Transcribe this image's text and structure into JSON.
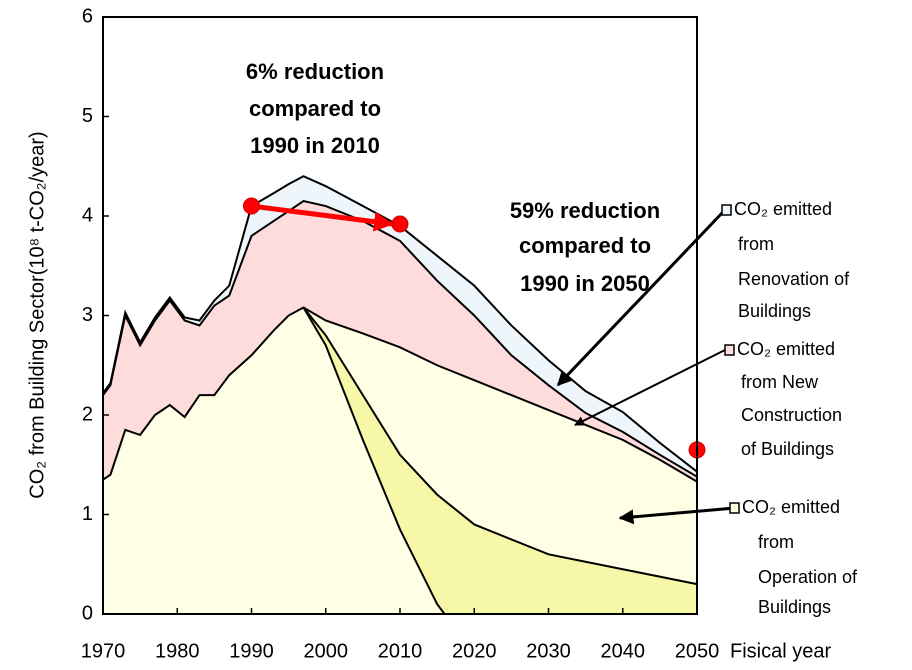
{
  "chart_data": {
    "type": "stacked_area",
    "y_label": "CO₂ from Building Sector(10⁸ t-CO₂/year)",
    "x_label": "Fisical year",
    "x": [
      1970,
      1971,
      1973,
      1975,
      1977,
      1979,
      1981,
      1983,
      1985,
      1987,
      1990,
      1993,
      1995,
      1997,
      2000,
      2005,
      2010,
      2015,
      2020,
      2025,
      2030,
      2035,
      2040,
      2045,
      2050
    ],
    "series": [
      {
        "name": [
          "CO₂ emitted",
          "from",
          "Operation of",
          "Buildings"
        ],
        "color": "#ffffe6",
        "values": [
          1.35,
          1.4,
          1.85,
          1.8,
          2.0,
          2.1,
          1.98,
          2.2,
          2.2,
          2.4,
          2.6,
          2.85,
          3.0,
          3.08,
          2.95,
          2.82,
          2.68,
          2.5,
          2.35,
          2.2,
          2.05,
          1.9,
          1.75,
          1.55,
          1.33
        ]
      },
      {
        "name": [
          "CO₂ emitted",
          "from New",
          "Construction",
          "of Buildings"
        ],
        "color": "#ffdcdc",
        "values": [
          0.85,
          0.9,
          1.15,
          0.9,
          0.95,
          1.05,
          0.97,
          0.7,
          0.9,
          0.8,
          1.2,
          1.1,
          1.05,
          1.07,
          1.15,
          1.13,
          1.07,
          0.85,
          0.65,
          0.4,
          0.25,
          0.12,
          0.08,
          0.05,
          0.05
        ]
      },
      {
        "name": [
          "CO₂ emitted",
          "from",
          "Renovation of",
          "Buildings"
        ],
        "color": "#eef6fc",
        "values": [
          0.02,
          0.02,
          0.03,
          0.03,
          0.03,
          0.03,
          0.03,
          0.05,
          0.05,
          0.1,
          0.3,
          0.28,
          0.27,
          0.25,
          0.2,
          0.15,
          0.15,
          0.25,
          0.3,
          0.3,
          0.25,
          0.22,
          0.2,
          0.12,
          0.05
        ]
      }
    ],
    "lines": [
      {
        "x": [
          1997,
          2000,
          2005,
          2010,
          2015,
          2016,
          2020,
          2030,
          2040,
          2050
        ],
        "values": [
          3.08,
          2.7,
          1.75,
          0.85,
          0.1,
          0,
          0,
          0,
          0,
          0
        ]
      },
      {
        "x": [
          1997,
          2000,
          2005,
          2010,
          2015,
          2020,
          2030,
          2040,
          2050
        ],
        "values": [
          3.08,
          2.8,
          2.2,
          1.6,
          1.2,
          0.9,
          0.6,
          0.45,
          0.3
        ]
      }
    ],
    "band_color": "#f7f7a8",
    "points": {
      "x": [
        1990,
        2010,
        2050
      ],
      "values": [
        4.1,
        3.92,
        1.65
      ],
      "color": "#ff0000"
    },
    "annotations": [
      [
        "6% reduction",
        "compared to",
        "1990 in 2010"
      ],
      [
        "59% reduction",
        "compared to",
        "1990 in 2050"
      ]
    ],
    "xlim": [
      1970,
      2050
    ],
    "xticks": [
      1970,
      1980,
      1990,
      2000,
      2010,
      2020,
      2030,
      2040,
      2050
    ],
    "ylim": [
      0,
      6
    ],
    "yticks": [
      0,
      1,
      2,
      3,
      4,
      5,
      6
    ]
  }
}
